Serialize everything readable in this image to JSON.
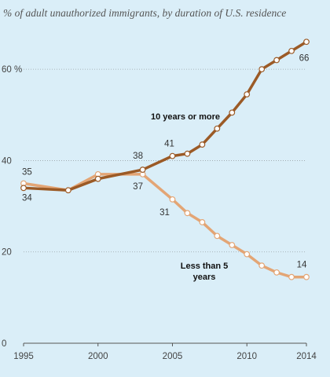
{
  "chart_data": {
    "type": "line",
    "title": "% of adult unauthorized immigrants, by duration of U.S. residence",
    "xlabel": "",
    "ylabel": "",
    "x_ticks": [
      "1995",
      "2000",
      "2005",
      "2010",
      "2014"
    ],
    "y_ticks": [
      "0",
      "20",
      "40",
      "60 %"
    ],
    "xlim": [
      1995,
      2014
    ],
    "ylim": [
      0,
      70
    ],
    "grid": "horizontal dotted",
    "x": [
      1995,
      1998,
      2000,
      2003,
      2005,
      2006,
      2007,
      2008,
      2009,
      2010,
      2011,
      2012,
      2013,
      2014
    ],
    "series": [
      {
        "name": "10 years or more",
        "color": "#9b5a26",
        "values": [
          34,
          33.5,
          36,
          38,
          41,
          41.5,
          43.5,
          47,
          50.5,
          54.5,
          60,
          62,
          64,
          66
        ]
      },
      {
        "name": "Less than 5 years",
        "color": "#e3a575",
        "values": [
          35,
          33.5,
          37,
          37,
          31.5,
          28.5,
          26.5,
          23.5,
          21.5,
          19.5,
          17,
          15.5,
          14.5,
          14.5
        ]
      }
    ],
    "data_labels": [
      {
        "text": "35",
        "series": 1,
        "index": 0
      },
      {
        "text": "34",
        "series": 0,
        "index": 0
      },
      {
        "text": "38",
        "series": 0,
        "index": 3
      },
      {
        "text": "37",
        "series": 1,
        "index": 3
      },
      {
        "text": "41",
        "series": 0,
        "index": 4
      },
      {
        "text": "31",
        "series": 1,
        "index": 4
      },
      {
        "text": "66",
        "series": 0,
        "index": 13
      },
      {
        "text": "14",
        "series": 1,
        "index": 13
      }
    ],
    "series_labels": [
      {
        "lines": [
          "10 years or more"
        ],
        "series": 0
      },
      {
        "lines": [
          "Less than 5",
          "years"
        ],
        "series": 1
      }
    ]
  }
}
